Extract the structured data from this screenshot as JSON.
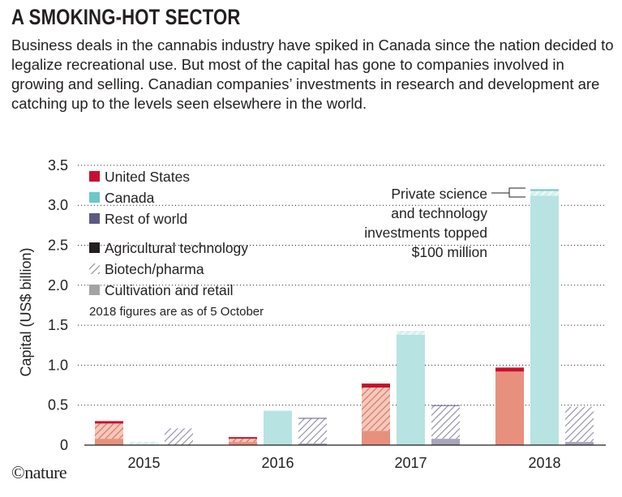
{
  "title": "A SMOKING-HOT SECTOR",
  "subtitle": "Business deals in the cannabis industry have spiked in Canada since the nation decided to legalize recreational use. But most of the capital has gone to companies involved in growing and selling. Canadian companies’ investments in research and development are catching up to the levels seen elsewhere in the world.",
  "credit": "©nature",
  "colors": {
    "united_states": "#c8102e",
    "canada": "#6cc8c6",
    "rest_of_world": "#5c5a82"
  },
  "chart_data": {
    "type": "bar",
    "stacked": true,
    "grouped": true,
    "ylabel": "Capital (US$ billion)",
    "xlabel": "",
    "ylim": [
      0,
      3.5
    ],
    "yticks": [
      "0",
      "0.5",
      "1.0",
      "1.5",
      "2.0",
      "2.5",
      "3.0",
      "3.5"
    ],
    "ytick_values": [
      0,
      0.5,
      1.0,
      1.5,
      2.0,
      2.5,
      3.0,
      3.5
    ],
    "grid": "dotted horizontal",
    "categories": [
      "2015",
      "2016",
      "2017",
      "2018"
    ],
    "legend_regions": [
      "United States",
      "Canada",
      "Rest of world"
    ],
    "legend_sectors": [
      "Agricultural technology",
      "Biotech/pharma",
      "Cultivation and retail"
    ],
    "legend_note": "2018 figures are as of 5 October",
    "legend_position": "top-left",
    "annotation": [
      "Private science",
      "and technology",
      "investments topped",
      "$100 million"
    ],
    "series": [
      {
        "name": "United States",
        "cultivation": [
          0.08,
          0.04,
          0.18,
          0.92
        ],
        "biotech": [
          0.19,
          0.04,
          0.54,
          0.0
        ],
        "agtech": [
          0.03,
          0.02,
          0.05,
          0.05
        ]
      },
      {
        "name": "Canada",
        "cultivation": [
          0.0,
          0.43,
          1.38,
          3.12
        ],
        "biotech": [
          0.04,
          0.0,
          0.05,
          0.06
        ],
        "agtech": [
          0.0,
          0.0,
          0.0,
          0.02
        ]
      },
      {
        "name": "Rest of world",
        "cultivation": [
          0.0,
          0.02,
          0.08,
          0.04
        ],
        "biotech": [
          0.21,
          0.31,
          0.41,
          0.44
        ],
        "agtech": [
          0.0,
          0.01,
          0.01,
          0.0
        ]
      }
    ]
  }
}
